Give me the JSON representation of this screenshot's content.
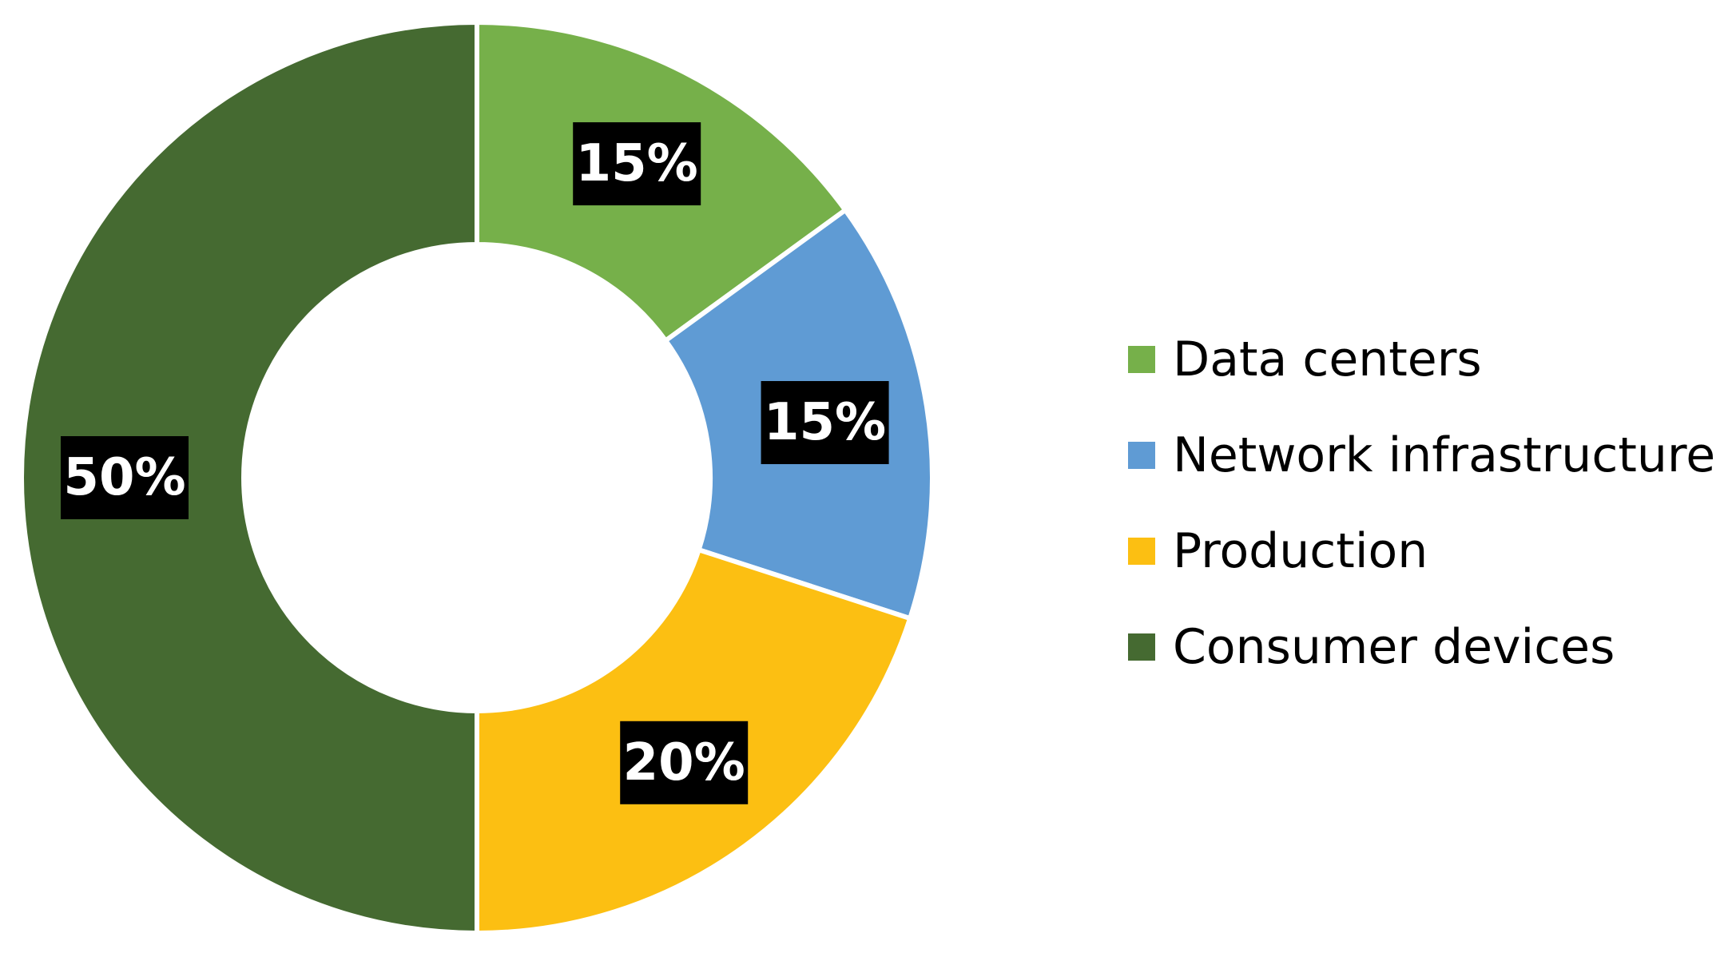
{
  "chart_data": {
    "type": "pie",
    "variant": "donut",
    "title": "",
    "categories": [
      "Data centers",
      "Network infrastructure",
      "Production",
      "Consumer devices"
    ],
    "values": [
      15,
      15,
      20,
      50
    ],
    "data_labels": [
      "15%",
      "15%",
      "20%",
      "50%"
    ],
    "colors": [
      "#76B04A",
      "#5F9BD4",
      "#FCBF12",
      "#456A31"
    ],
    "data_label_background": "#000000",
    "data_label_color": "#ffffff",
    "legend": {
      "placement": "right",
      "entries": [
        "Data centers",
        "Network infrastructure",
        "Production",
        "Consumer devices"
      ]
    }
  }
}
